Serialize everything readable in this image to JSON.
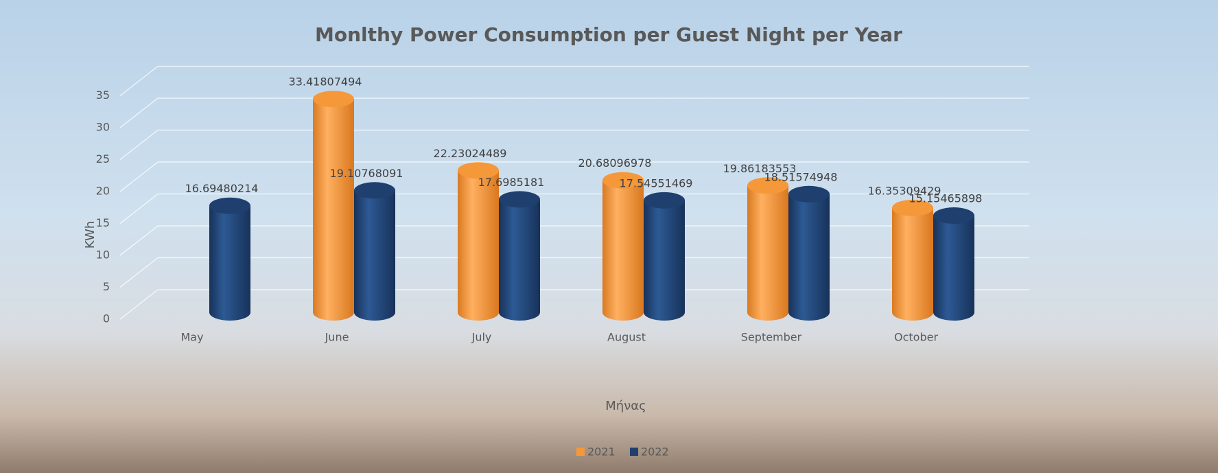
{
  "chart_data": {
    "type": "bar3d",
    "title": "Monlthy Power Consumption per Guest Night per Year",
    "y_label": "KWh",
    "x_label": "Μήνας",
    "categories": [
      "May",
      "June",
      "July",
      "August",
      "September",
      "October"
    ],
    "series": [
      {
        "name": "2021",
        "color": "#f5983a",
        "values": [
          null,
          33.41807494,
          22.23024489,
          20.68096978,
          19.86183553,
          16.35309429
        ]
      },
      {
        "name": "2022",
        "color": "#1f3f6e",
        "values": [
          16.69480214,
          19.10768091,
          17.6985181,
          17.54551469,
          18.51574948,
          15.15465898
        ]
      }
    ],
    "ylim": [
      0,
      35
    ],
    "yticks": [
      0,
      5,
      10,
      15,
      20,
      25,
      30,
      35
    ],
    "grid": true,
    "legend": "bottom"
  }
}
